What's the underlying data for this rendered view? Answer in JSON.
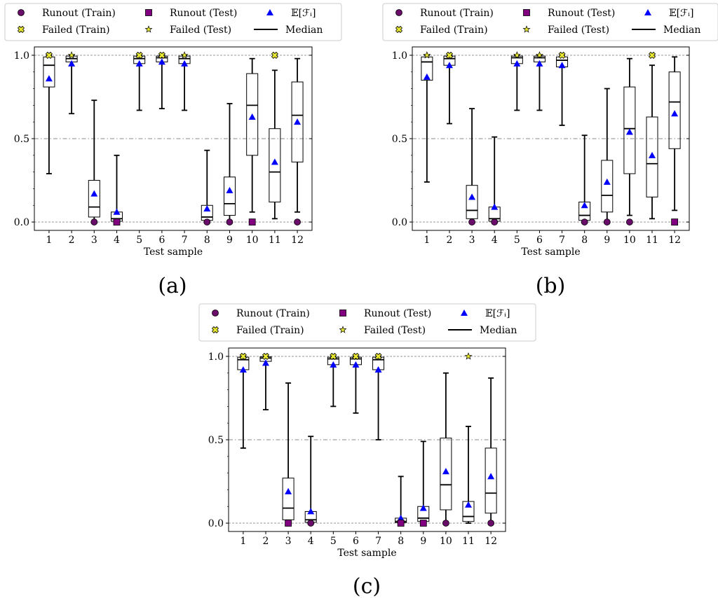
{
  "legend": {
    "runout_train": "Runout (Train)",
    "runout_test": "Runout (Test)",
    "expectation": "𝔼[ℱᵢ]",
    "failed_train": "Failed (Train)",
    "failed_test": "Failed (Test)",
    "median": "Median"
  },
  "colors": {
    "runout": "#6a0d6a",
    "runout_test": "#800080",
    "failed": "#e8e830",
    "expectation": "#0000ff",
    "grid": "#888888"
  },
  "chart_data": [
    {
      "type": "box",
      "panel_label": "(a)",
      "xlabel": "Test sample",
      "ylabel": "",
      "ylim": [
        -0.05,
        1.05
      ],
      "yticks": [
        0.0,
        0.5,
        1.0
      ],
      "ytick_labels": [
        "0.0",
        "0.5",
        "1.0"
      ],
      "reference_lines": [
        0.0,
        0.5,
        1.0
      ],
      "categories": [
        "1",
        "2",
        "3",
        "4",
        "5",
        "6",
        "7",
        "8",
        "9",
        "10",
        "11",
        "12"
      ],
      "boxes": [
        {
          "min": 0.29,
          "q1": 0.81,
          "median": 0.94,
          "q3": 0.99,
          "max": 1.0,
          "mean": 0.86
        },
        {
          "min": 0.65,
          "q1": 0.96,
          "median": 0.98,
          "q3": 0.995,
          "max": 1.0,
          "mean": 0.95
        },
        {
          "min": 0.0,
          "q1": 0.03,
          "median": 0.09,
          "q3": 0.25,
          "max": 0.73,
          "mean": 0.17
        },
        {
          "min": 0.0,
          "q1": 0.005,
          "median": 0.02,
          "q3": 0.06,
          "max": 0.4,
          "mean": 0.06
        },
        {
          "min": 0.67,
          "q1": 0.95,
          "median": 0.98,
          "q3": 0.995,
          "max": 1.0,
          "mean": 0.95
        },
        {
          "min": 0.68,
          "q1": 0.96,
          "median": 0.985,
          "q3": 0.995,
          "max": 1.0,
          "mean": 0.96
        },
        {
          "min": 0.67,
          "q1": 0.95,
          "median": 0.98,
          "q3": 0.995,
          "max": 1.0,
          "mean": 0.95
        },
        {
          "min": 0.0,
          "q1": 0.01,
          "median": 0.03,
          "q3": 0.1,
          "max": 0.43,
          "mean": 0.08
        },
        {
          "min": 0.0,
          "q1": 0.04,
          "median": 0.11,
          "q3": 0.27,
          "max": 0.71,
          "mean": 0.19
        },
        {
          "min": 0.06,
          "q1": 0.4,
          "median": 0.7,
          "q3": 0.89,
          "max": 0.98,
          "mean": 0.63
        },
        {
          "min": 0.02,
          "q1": 0.12,
          "median": 0.3,
          "q3": 0.56,
          "max": 0.91,
          "mean": 0.36
        },
        {
          "min": 0.06,
          "q1": 0.36,
          "median": 0.64,
          "q3": 0.84,
          "max": 0.98,
          "mean": 0.6
        }
      ],
      "points": [
        {
          "x": 1,
          "y": 1.0,
          "kind": "failed_train"
        },
        {
          "x": 2,
          "y": 1.0,
          "kind": "failed_test"
        },
        {
          "x": 3,
          "y": 0.0,
          "kind": "runout_train"
        },
        {
          "x": 4,
          "y": 0.0,
          "kind": "runout_test"
        },
        {
          "x": 5,
          "y": 1.0,
          "kind": "failed_train"
        },
        {
          "x": 6,
          "y": 1.0,
          "kind": "failed_train"
        },
        {
          "x": 7,
          "y": 1.0,
          "kind": "failed_test"
        },
        {
          "x": 8,
          "y": 0.0,
          "kind": "runout_train"
        },
        {
          "x": 9,
          "y": 0.0,
          "kind": "runout_train"
        },
        {
          "x": 10,
          "y": 0.0,
          "kind": "runout_test"
        },
        {
          "x": 11,
          "y": 1.0,
          "kind": "failed_train"
        },
        {
          "x": 12,
          "y": 0.0,
          "kind": "runout_train"
        }
      ]
    },
    {
      "type": "box",
      "panel_label": "(b)",
      "xlabel": "Test sample",
      "ylabel": "",
      "ylim": [
        -0.05,
        1.05
      ],
      "yticks": [
        0.0,
        0.5,
        1.0
      ],
      "ytick_labels": [
        "0.0",
        "0.5",
        "1.0"
      ],
      "reference_lines": [
        0.0,
        0.5,
        1.0
      ],
      "categories": [
        "1",
        "2",
        "3",
        "4",
        "5",
        "6",
        "7",
        "8",
        "9",
        "10",
        "11",
        "12"
      ],
      "boxes": [
        {
          "min": 0.24,
          "q1": 0.85,
          "median": 0.96,
          "q3": 0.99,
          "max": 1.0,
          "mean": 0.87
        },
        {
          "min": 0.59,
          "q1": 0.94,
          "median": 0.98,
          "q3": 0.995,
          "max": 1.0,
          "mean": 0.94
        },
        {
          "min": 0.0,
          "q1": 0.02,
          "median": 0.07,
          "q3": 0.22,
          "max": 0.68,
          "mean": 0.15
        },
        {
          "min": 0.0,
          "q1": 0.005,
          "median": 0.02,
          "q3": 0.09,
          "max": 0.51,
          "mean": 0.09
        },
        {
          "min": 0.67,
          "q1": 0.95,
          "median": 0.985,
          "q3": 0.995,
          "max": 1.0,
          "mean": 0.95
        },
        {
          "min": 0.67,
          "q1": 0.96,
          "median": 0.985,
          "q3": 0.995,
          "max": 1.0,
          "mean": 0.95
        },
        {
          "min": 0.58,
          "q1": 0.93,
          "median": 0.97,
          "q3": 0.99,
          "max": 1.0,
          "mean": 0.94
        },
        {
          "min": 0.0,
          "q1": 0.01,
          "median": 0.04,
          "q3": 0.12,
          "max": 0.52,
          "mean": 0.1
        },
        {
          "min": 0.0,
          "q1": 0.06,
          "median": 0.16,
          "q3": 0.37,
          "max": 0.8,
          "mean": 0.24
        },
        {
          "min": 0.04,
          "q1": 0.29,
          "median": 0.56,
          "q3": 0.81,
          "max": 0.98,
          "mean": 0.54
        },
        {
          "min": 0.02,
          "q1": 0.15,
          "median": 0.35,
          "q3": 0.63,
          "max": 0.94,
          "mean": 0.4
        },
        {
          "min": 0.07,
          "q1": 0.44,
          "median": 0.72,
          "q3": 0.9,
          "max": 0.99,
          "mean": 0.65
        }
      ],
      "points": [
        {
          "x": 1,
          "y": 1.0,
          "kind": "failed_test"
        },
        {
          "x": 2,
          "y": 1.0,
          "kind": "failed_train"
        },
        {
          "x": 3,
          "y": 0.0,
          "kind": "runout_train"
        },
        {
          "x": 4,
          "y": 0.0,
          "kind": "runout_train"
        },
        {
          "x": 5,
          "y": 1.0,
          "kind": "failed_test"
        },
        {
          "x": 6,
          "y": 1.0,
          "kind": "failed_test"
        },
        {
          "x": 7,
          "y": 1.0,
          "kind": "failed_train"
        },
        {
          "x": 8,
          "y": 0.0,
          "kind": "runout_train"
        },
        {
          "x": 9,
          "y": 0.0,
          "kind": "runout_train"
        },
        {
          "x": 10,
          "y": 0.0,
          "kind": "runout_train"
        },
        {
          "x": 11,
          "y": 1.0,
          "kind": "failed_train"
        },
        {
          "x": 12,
          "y": 0.0,
          "kind": "runout_test"
        }
      ]
    },
    {
      "type": "box",
      "panel_label": "(c)",
      "xlabel": "Test sample",
      "ylabel": "",
      "ylim": [
        -0.05,
        1.05
      ],
      "yticks": [
        0.0,
        0.5,
        1.0
      ],
      "ytick_labels": [
        "0.0",
        "0.5",
        "1.0"
      ],
      "reference_lines": [
        0.0,
        0.5,
        1.0
      ],
      "categories": [
        "1",
        "2",
        "3",
        "4",
        "5",
        "6",
        "7",
        "8",
        "9",
        "10",
        "11",
        "12"
      ],
      "boxes": [
        {
          "min": 0.45,
          "q1": 0.92,
          "median": 0.98,
          "q3": 0.995,
          "max": 1.0,
          "mean": 0.92
        },
        {
          "min": 0.68,
          "q1": 0.97,
          "median": 0.99,
          "q3": 0.998,
          "max": 1.0,
          "mean": 0.96
        },
        {
          "min": 0.0,
          "q1": 0.02,
          "median": 0.09,
          "q3": 0.27,
          "max": 0.84,
          "mean": 0.19
        },
        {
          "min": 0.0,
          "q1": 0.005,
          "median": 0.02,
          "q3": 0.07,
          "max": 0.52,
          "mean": 0.07
        },
        {
          "min": 0.7,
          "q1": 0.95,
          "median": 0.985,
          "q3": 0.995,
          "max": 1.0,
          "mean": 0.95
        },
        {
          "min": 0.66,
          "q1": 0.95,
          "median": 0.985,
          "q3": 0.995,
          "max": 1.0,
          "mean": 0.95
        },
        {
          "min": 0.5,
          "q1": 0.92,
          "median": 0.98,
          "q3": 0.995,
          "max": 1.0,
          "mean": 0.92
        },
        {
          "min": 0.0,
          "q1": 0.003,
          "median": 0.01,
          "q3": 0.03,
          "max": 0.28,
          "mean": 0.03
        },
        {
          "min": 0.0,
          "q1": 0.01,
          "median": 0.03,
          "q3": 0.1,
          "max": 0.49,
          "mean": 0.09
        },
        {
          "min": 0.0,
          "q1": 0.08,
          "median": 0.23,
          "q3": 0.51,
          "max": 0.9,
          "mean": 0.31
        },
        {
          "min": 0.0,
          "q1": 0.01,
          "median": 0.04,
          "q3": 0.13,
          "max": 0.58,
          "mean": 0.11
        },
        {
          "min": 0.0,
          "q1": 0.06,
          "median": 0.18,
          "q3": 0.45,
          "max": 0.87,
          "mean": 0.28
        }
      ],
      "points": [
        {
          "x": 1,
          "y": 1.0,
          "kind": "failed_train"
        },
        {
          "x": 2,
          "y": 1.0,
          "kind": "failed_train"
        },
        {
          "x": 3,
          "y": 0.0,
          "kind": "runout_test"
        },
        {
          "x": 4,
          "y": 0.0,
          "kind": "runout_train"
        },
        {
          "x": 5,
          "y": 1.0,
          "kind": "failed_train"
        },
        {
          "x": 6,
          "y": 1.0,
          "kind": "failed_train"
        },
        {
          "x": 7,
          "y": 1.0,
          "kind": "failed_train"
        },
        {
          "x": 8,
          "y": 0.0,
          "kind": "runout_test"
        },
        {
          "x": 9,
          "y": 0.0,
          "kind": "runout_test"
        },
        {
          "x": 10,
          "y": 0.0,
          "kind": "runout_train"
        },
        {
          "x": 11,
          "y": 1.0,
          "kind": "failed_test"
        },
        {
          "x": 12,
          "y": 0.0,
          "kind": "runout_train"
        }
      ]
    }
  ]
}
